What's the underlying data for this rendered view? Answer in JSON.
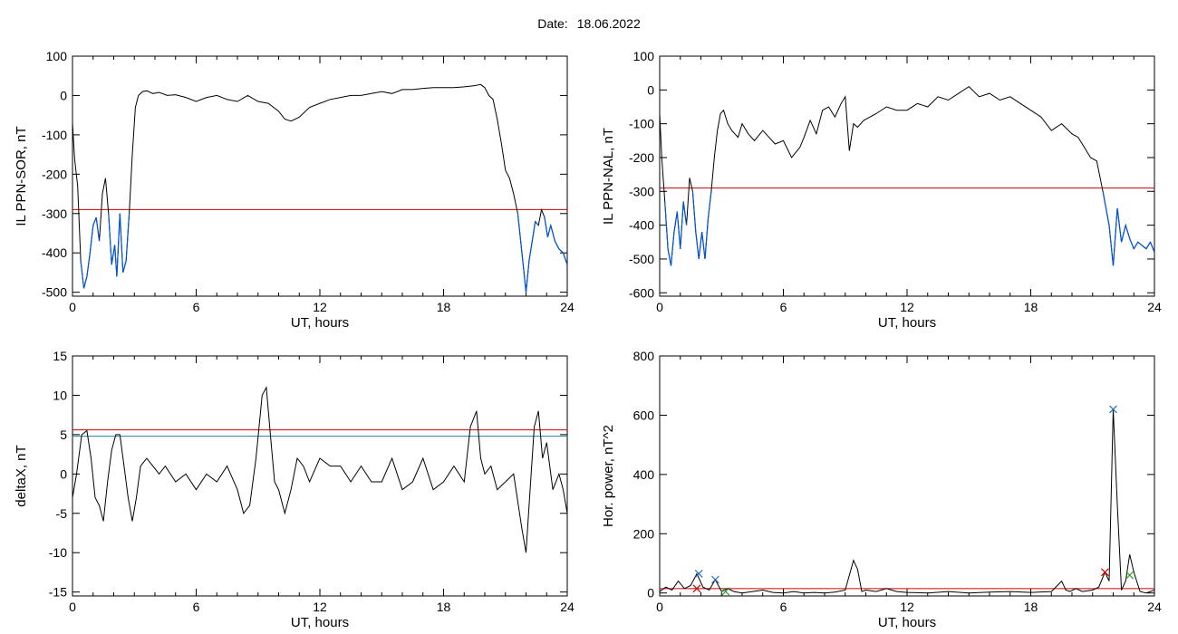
{
  "header": {
    "date_label": "Date:",
    "date_value": "18.06.2022"
  },
  "colors": {
    "data_line": "#000000",
    "threshold_red": "#cc0000",
    "threshold_teal": "#1a8a9a",
    "below_threshold_blue": "#0055dd",
    "marker_blue": "#1f6fbf",
    "marker_red": "#cc0000",
    "marker_green": "#2ea02e"
  },
  "chart_data": [
    {
      "id": "sor",
      "type": "line",
      "xlabel": "UT, hours",
      "ylabel": "IL PPN-SOR, nT",
      "xlim": [
        0,
        24
      ],
      "ylim": [
        -510,
        100
      ],
      "xticks": [
        0,
        6,
        12,
        18,
        24
      ],
      "yticks": [
        100,
        0,
        -100,
        -200,
        -300,
        -400,
        -500
      ],
      "threshold": {
        "value": -290,
        "color": "#cc0000"
      },
      "below_threshold_color": "#0055dd",
      "series": [
        {
          "x": [
            0,
            0.1,
            0.25,
            0.4,
            0.55,
            0.7,
            0.85,
            1.0,
            1.15,
            1.3,
            1.45,
            1.6,
            1.75,
            1.9,
            2.05,
            2.15,
            2.3,
            2.45,
            2.6,
            2.75,
            2.9,
            3.05,
            3.2,
            3.4,
            3.6,
            3.9,
            4.2,
            4.6,
            5.0,
            5.5,
            6.0,
            6.5,
            7.0,
            7.5,
            8.0,
            8.5,
            9.0,
            9.5,
            10.0,
            10.3,
            10.6,
            11.0,
            11.5,
            12.0,
            12.5,
            13.0,
            13.5,
            14.0,
            14.5,
            15.0,
            15.5,
            16.0,
            16.5,
            17.0,
            17.5,
            18.0,
            18.5,
            19.0,
            19.5,
            19.8,
            20.0,
            20.2,
            20.4,
            20.6,
            20.8,
            21.0,
            21.2,
            21.4,
            21.6,
            21.8,
            22.0,
            22.15,
            22.3,
            22.45,
            22.6,
            22.75,
            22.9,
            23.05,
            23.2,
            23.4,
            23.6,
            23.8,
            24.0
          ],
          "y": [
            -70,
            -160,
            -230,
            -420,
            -490,
            -460,
            -400,
            -330,
            -310,
            -370,
            -250,
            -210,
            -300,
            -430,
            -380,
            -460,
            -300,
            -450,
            -420,
            -300,
            -150,
            -30,
            0,
            10,
            12,
            5,
            8,
            0,
            2,
            -5,
            -15,
            -5,
            0,
            -10,
            -15,
            0,
            -15,
            -20,
            -40,
            -60,
            -65,
            -55,
            -30,
            -20,
            -10,
            -5,
            0,
            0,
            5,
            10,
            5,
            15,
            15,
            18,
            20,
            20,
            20,
            22,
            25,
            28,
            20,
            0,
            -10,
            -60,
            -120,
            -190,
            -210,
            -250,
            -300,
            -400,
            -500,
            -420,
            -370,
            -320,
            -330,
            -290,
            -310,
            -360,
            -330,
            -370,
            -390,
            -400,
            -430
          ]
        }
      ]
    },
    {
      "id": "nal",
      "type": "line",
      "xlabel": "UT, hours",
      "ylabel": "IL PPN-NAL, nT",
      "xlim": [
        0,
        24
      ],
      "ylim": [
        -610,
        100
      ],
      "xticks": [
        0,
        6,
        12,
        18,
        24
      ],
      "yticks": [
        100,
        0,
        -100,
        -200,
        -300,
        -400,
        -500,
        -600
      ],
      "threshold": {
        "value": -290,
        "color": "#cc0000"
      },
      "below_threshold_color": "#0055dd",
      "series": [
        {
          "x": [
            0,
            0.1,
            0.25,
            0.4,
            0.55,
            0.7,
            0.85,
            1.0,
            1.15,
            1.3,
            1.45,
            1.6,
            1.75,
            1.9,
            2.05,
            2.2,
            2.35,
            2.5,
            2.65,
            2.8,
            2.95,
            3.1,
            3.3,
            3.5,
            3.8,
            4.0,
            4.3,
            4.6,
            5.0,
            5.3,
            5.6,
            6.0,
            6.4,
            6.8,
            7.0,
            7.3,
            7.6,
            7.9,
            8.2,
            8.5,
            8.8,
            9.0,
            9.2,
            9.4,
            9.6,
            9.9,
            10.2,
            10.5,
            11.0,
            11.5,
            12.0,
            12.5,
            13.0,
            13.5,
            14.0,
            14.5,
            15.0,
            15.5,
            16.0,
            16.5,
            17.0,
            17.5,
            18.0,
            18.5,
            19.0,
            19.5,
            20.0,
            20.3,
            20.6,
            20.9,
            21.2,
            21.5,
            21.8,
            22.0,
            22.2,
            22.4,
            22.6,
            22.8,
            23.0,
            23.2,
            23.4,
            23.6,
            23.8,
            24.0
          ],
          "y": [
            -70,
            -200,
            -330,
            -470,
            -520,
            -420,
            -360,
            -470,
            -330,
            -400,
            -260,
            -300,
            -420,
            -500,
            -420,
            -500,
            -380,
            -300,
            -200,
            -120,
            -70,
            -60,
            -100,
            -120,
            -140,
            -100,
            -130,
            -150,
            -120,
            -140,
            -160,
            -150,
            -200,
            -170,
            -140,
            -90,
            -130,
            -60,
            -50,
            -80,
            -40,
            -20,
            -180,
            -100,
            -110,
            -90,
            -80,
            -70,
            -50,
            -60,
            -60,
            -40,
            -50,
            -20,
            -30,
            -10,
            10,
            -20,
            -10,
            -30,
            -20,
            -40,
            -60,
            -80,
            -120,
            -100,
            -130,
            -140,
            -170,
            -200,
            -210,
            -300,
            -400,
            -520,
            -350,
            -450,
            -400,
            -440,
            -470,
            -450,
            -460,
            -470,
            -450,
            -480
          ]
        }
      ]
    },
    {
      "id": "deltax",
      "type": "line",
      "xlabel": "UT, hours",
      "ylabel": "deltaX, nT",
      "xlim": [
        0,
        24
      ],
      "ylim": [
        -15.5,
        15
      ],
      "xticks": [
        0,
        6,
        12,
        18,
        24
      ],
      "yticks": [
        15,
        10,
        5,
        0,
        -5,
        -10,
        -15
      ],
      "threshold": {
        "value": 5.6,
        "color": "#cc0000"
      },
      "second_threshold": {
        "value": 4.8,
        "color": "#1a8a9a"
      },
      "series": [
        {
          "x": [
            0,
            0.2,
            0.45,
            0.7,
            0.9,
            1.1,
            1.3,
            1.5,
            1.7,
            1.9,
            2.1,
            2.3,
            2.5,
            2.7,
            2.9,
            3.1,
            3.3,
            3.6,
            3.9,
            4.2,
            4.5,
            5.0,
            5.5,
            6.0,
            6.5,
            7.0,
            7.5,
            8.0,
            8.3,
            8.6,
            8.9,
            9.2,
            9.4,
            9.6,
            9.8,
            10.0,
            10.3,
            10.6,
            10.9,
            11.2,
            11.5,
            12.0,
            12.5,
            13.0,
            13.5,
            14.0,
            14.5,
            15.0,
            15.5,
            16.0,
            16.5,
            17.0,
            17.5,
            18.0,
            18.5,
            19.0,
            19.3,
            19.6,
            19.8,
            20.0,
            20.3,
            20.6,
            21.0,
            21.4,
            21.8,
            22.0,
            22.2,
            22.4,
            22.6,
            22.8,
            23.0,
            23.3,
            23.6,
            23.8,
            24.0
          ],
          "y": [
            -3,
            0,
            5,
            5.5,
            2,
            -3,
            -4,
            -6,
            -1,
            3,
            5,
            5,
            1,
            -3,
            -6,
            -3,
            1,
            2,
            1,
            0,
            1,
            -1,
            0,
            -2,
            0,
            -1,
            1,
            -2,
            -5,
            -4,
            2,
            10,
            11,
            5,
            -1,
            -2,
            -5,
            -2,
            2,
            1,
            -1,
            2,
            1,
            1,
            -1,
            1,
            -1,
            -1,
            2,
            -2,
            -1,
            2,
            -2,
            -1,
            1,
            -1,
            6,
            8,
            2,
            0,
            1,
            -2,
            -1,
            0,
            -7,
            -10,
            -2,
            6,
            8,
            2,
            4,
            -2,
            0,
            -2,
            -5
          ]
        }
      ]
    },
    {
      "id": "hpower",
      "type": "line",
      "xlabel": "UT, hours",
      "ylabel": "Hor. power, nT^2",
      "xlim": [
        0,
        24
      ],
      "ylim": [
        -10,
        800
      ],
      "xticks": [
        0,
        6,
        12,
        18,
        24
      ],
      "yticks": [
        800,
        600,
        400,
        200,
        0
      ],
      "threshold": {
        "value": 15,
        "color": "#cc0000"
      },
      "series": [
        {
          "x": [
            0,
            0.3,
            0.6,
            0.9,
            1.2,
            1.5,
            1.8,
            2.1,
            2.4,
            2.7,
            3.0,
            3.3,
            3.6,
            4.0,
            4.5,
            5.0,
            5.5,
            6.0,
            6.5,
            7.0,
            7.5,
            8.0,
            8.5,
            9.0,
            9.2,
            9.4,
            9.6,
            9.8,
            10.0,
            10.5,
            11.0,
            11.5,
            12.0,
            13.0,
            14.0,
            15.0,
            16.0,
            17.0,
            18.0,
            19.0,
            19.5,
            19.7,
            19.9,
            20.2,
            20.5,
            21.0,
            21.3,
            21.6,
            21.8,
            22.0,
            22.2,
            22.4,
            22.6,
            22.8,
            23.0,
            23.3,
            23.6,
            24.0
          ],
          "y": [
            5,
            20,
            10,
            40,
            15,
            25,
            65,
            20,
            10,
            45,
            5,
            15,
            5,
            0,
            5,
            10,
            2,
            0,
            5,
            0,
            2,
            0,
            3,
            10,
            60,
            110,
            80,
            5,
            10,
            5,
            15,
            5,
            2,
            0,
            5,
            0,
            3,
            5,
            2,
            5,
            40,
            10,
            5,
            15,
            5,
            10,
            20,
            70,
            40,
            620,
            300,
            10,
            40,
            130,
            70,
            5,
            0,
            10
          ]
        }
      ],
      "markers": [
        {
          "x": 1.9,
          "y": 65,
          "color": "#1f6fbf",
          "symbol": "x"
        },
        {
          "x": 2.7,
          "y": 45,
          "color": "#1f6fbf",
          "symbol": "x"
        },
        {
          "x": 22.0,
          "y": 620,
          "color": "#1f6fbf",
          "symbol": "x"
        },
        {
          "x": 1.8,
          "y": 15,
          "color": "#cc0000",
          "symbol": "x"
        },
        {
          "x": 21.6,
          "y": 70,
          "color": "#cc0000",
          "symbol": "x"
        },
        {
          "x": 3.2,
          "y": 5,
          "color": "#2ea02e",
          "symbol": "x"
        },
        {
          "x": 22.8,
          "y": 60,
          "color": "#2ea02e",
          "symbol": "x"
        }
      ]
    }
  ]
}
